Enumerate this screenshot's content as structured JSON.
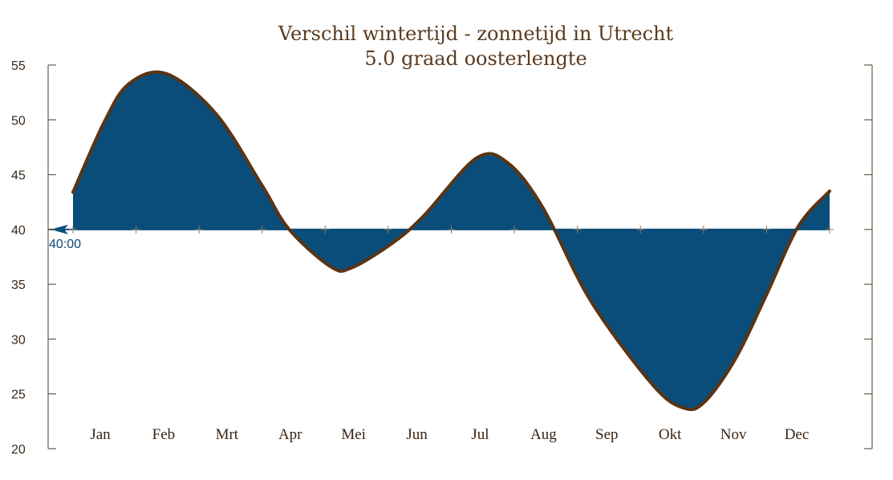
{
  "chart_data": {
    "type": "area",
    "title": "Verschil wintertijd - zonnetijd in Utrecht",
    "subtitle": "5.0 graad oosterlengte",
    "categories": [
      "Jan",
      "Feb",
      "Mrt",
      "Apr",
      "Mei",
      "Jun",
      "Jul",
      "Aug",
      "Sep",
      "Okt",
      "Nov",
      "Dec"
    ],
    "ylim": [
      20,
      55
    ],
    "yticks": [
      20,
      25,
      30,
      35,
      40,
      45,
      50,
      55
    ],
    "reference": {
      "value": 40,
      "label": "40:00"
    },
    "x_domain": [
      1,
      365
    ],
    "x": [
      1,
      16,
      28,
      46,
      70,
      92,
      105,
      125,
      135,
      155,
      170,
      195,
      210,
      227,
      250,
      280,
      295,
      305,
      320,
      335,
      350,
      365
    ],
    "y": [
      43.4,
      49.8,
      53.3,
      54.2,
      50.5,
      44.0,
      40.0,
      36.6,
      36.5,
      38.8,
      41.3,
      46.5,
      46.1,
      42.0,
      33.5,
      25.8,
      23.7,
      24.3,
      28.3,
      34.2,
      40.3,
      43.5
    ],
    "colors": {
      "fill": "#0a4d7a",
      "curve": "#5a3413",
      "text": "#5a3a1e"
    },
    "grid": false
  }
}
